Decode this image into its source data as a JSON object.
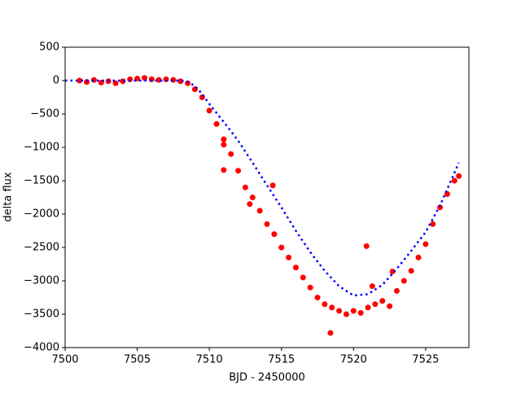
{
  "chart_data": {
    "type": "scatter",
    "x_label": "BJD - 2450000",
    "y_label": "delta flux",
    "xlim": [
      7500,
      7528
    ],
    "ylim": [
      -4000,
      500
    ],
    "xticks": [
      7500,
      7505,
      7510,
      7515,
      7520,
      7525
    ],
    "yticks": [
      500,
      0,
      {
        "value": -500,
        "label": "−500"
      },
      {
        "value": -1000,
        "label": "−1000"
      },
      {
        "value": -1500,
        "label": "−1500"
      },
      {
        "value": -2000,
        "label": "−2000"
      },
      {
        "value": -2500,
        "label": "−2500"
      },
      {
        "value": -3000,
        "label": "−3000"
      },
      {
        "value": -3500,
        "label": "−3500"
      },
      {
        "value": -4000,
        "label": "−4000"
      }
    ],
    "grid": false,
    "series": [
      {
        "color": "#ff0000",
        "style": "markers",
        "x": [
          7501,
          7501.5,
          7502,
          7502.5,
          7503,
          7503.5,
          7504,
          7504.5,
          7505,
          7505.5,
          7506,
          7506.5,
          7507,
          7507.5,
          7508,
          7508.5,
          7509,
          7509.5,
          7510,
          7510.5,
          7511,
          7511.5,
          7512,
          7512.5,
          7513,
          7513.5,
          7514,
          7514.5,
          7515,
          7515.5,
          7516,
          7516.5,
          7517,
          7517.5,
          7518,
          7518.5,
          7519,
          7519.5,
          7520,
          7520.5,
          7521,
          7521.5,
          7522,
          7522.5,
          7523,
          7523.5,
          7524,
          7524.5,
          7525,
          7525.5,
          7526,
          7526.5,
          7527,
          7527.3,
          7511,
          7511,
          7512.8,
          7514.4,
          7518.4,
          7520.9,
          7522.7,
          7521.3
        ],
        "values": [
          0,
          -20,
          10,
          -30,
          -10,
          -40,
          -10,
          20,
          30,
          40,
          20,
          10,
          20,
          10,
          -10,
          -40,
          -130,
          -250,
          -450,
          -650,
          -880,
          -1100,
          -1350,
          -1600,
          -1750,
          -1950,
          -2150,
          -2300,
          -2500,
          -2650,
          -2800,
          -2950,
          -3100,
          -3250,
          -3350,
          -3400,
          -3450,
          -3500,
          -3450,
          -3480,
          -3400,
          -3350,
          -3300,
          -3380,
          -3150,
          -3000,
          -2850,
          -2650,
          -2450,
          -2150,
          -1900,
          -1700,
          -1500,
          -1430,
          -1340,
          -960,
          -1850,
          -1570,
          -3780,
          -2480,
          -2860,
          -3080
        ]
      },
      {
        "color": "#0000ff",
        "style": "dotted",
        "x": [
          7500,
          7501,
          7502,
          7503,
          7504,
          7505,
          7506,
          7507,
          7508,
          7508.5,
          7509,
          7509.5,
          7510,
          7511,
          7512,
          7513,
          7514,
          7515,
          7516,
          7517,
          7518,
          7519,
          7520,
          7521,
          7522,
          7523,
          7524,
          7525,
          7526,
          7527,
          7527.3
        ],
        "values": [
          0,
          0,
          0,
          0,
          0,
          0,
          0,
          0,
          0,
          -20,
          -80,
          -200,
          -350,
          -620,
          -900,
          -1230,
          -1570,
          -1900,
          -2250,
          -2570,
          -2850,
          -3080,
          -3220,
          -3200,
          -3060,
          -2820,
          -2550,
          -2270,
          -1870,
          -1380,
          -1230
        ]
      }
    ]
  }
}
